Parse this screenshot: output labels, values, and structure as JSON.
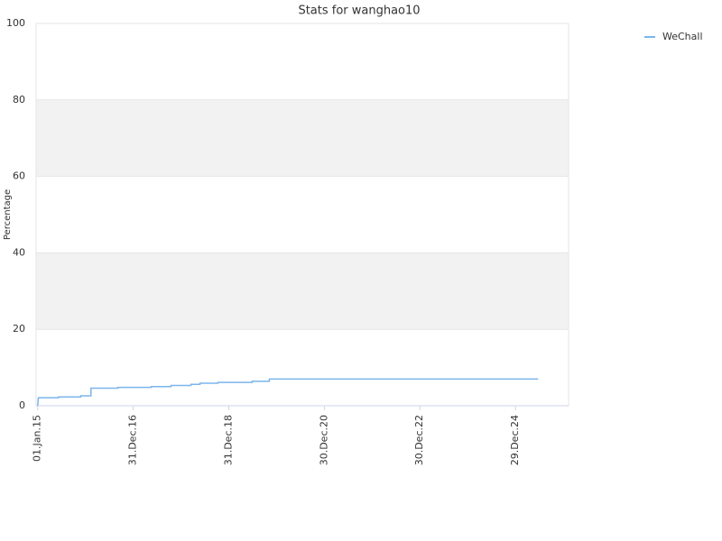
{
  "chart_data": {
    "type": "line",
    "title": "Stats for wanghao10",
    "y_label": "Percentage",
    "x": [
      "2015-01-01",
      "2015-01-06",
      "2015-06-08",
      "2015-06-08",
      "2015-11-26",
      "2015-11-26",
      "2016-02-12",
      "2016-02-12",
      "2016-09-05",
      "2016-09-05",
      "2017-05-18",
      "2017-05-18",
      "2017-10-16",
      "2017-10-16",
      "2018-03-17",
      "2018-03-17",
      "2018-05-25",
      "2018-05-25",
      "2018-10-09",
      "2018-10-09",
      "2019-06-28",
      "2019-06-28",
      "2019-11-06",
      "2019-11-06",
      "2025-06-21"
    ],
    "series": [
      {
        "name": "WeChall",
        "color": "#7cb5ec",
        "values": [
          0,
          2.1,
          2.1,
          2.3,
          2.3,
          2.6,
          2.6,
          4.6,
          4.6,
          4.8,
          4.8,
          5.0,
          5.0,
          5.3,
          5.3,
          5.6,
          5.6,
          5.9,
          5.9,
          6.1,
          6.1,
          6.4,
          6.4,
          7.0,
          7.0
        ]
      }
    ],
    "xlim": [
      "2014-12-20",
      "2026-02-08"
    ],
    "xticks": [
      {
        "value": "2015-01-01",
        "label": "01.Jan.15"
      },
      {
        "value": "2016-12-31",
        "label": "31.Dec.16"
      },
      {
        "value": "2018-12-31",
        "label": "31.Dec.18"
      },
      {
        "value": "2020-12-30",
        "label": "30.Dec.20"
      },
      {
        "value": "2022-12-30",
        "label": "30.Dec.22"
      },
      {
        "value": "2024-12-29",
        "label": "29.Dec.24"
      }
    ],
    "ylim": [
      0,
      100
    ],
    "yticks": [
      0,
      20,
      40,
      60,
      80,
      100
    ],
    "grid": true,
    "band_color": "#f2f2f2",
    "legend": "top-right"
  }
}
